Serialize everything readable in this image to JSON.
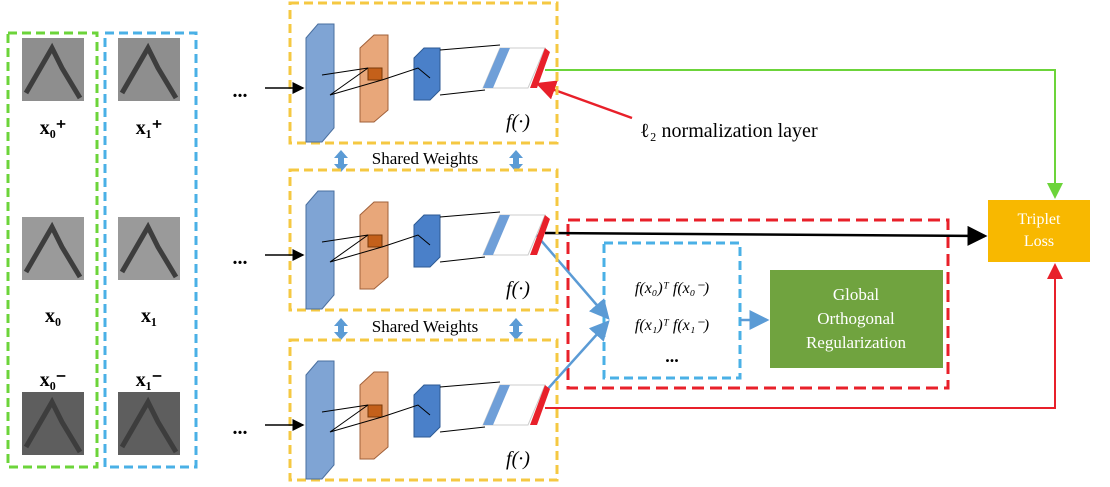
{
  "samples": [
    {
      "label": "x₀⁺"
    },
    {
      "label": "x₁⁺"
    },
    {
      "label": "x₀"
    },
    {
      "label": "x₁"
    },
    {
      "label": "x₀⁻"
    },
    {
      "label": "x₁⁻"
    }
  ],
  "ellipses": [
    "...",
    "...",
    "..."
  ],
  "branches": [
    {
      "function": "f(·)"
    },
    {
      "function": "f(·)"
    },
    {
      "function": "f(·)"
    }
  ],
  "normalization_label": "ℓ₂ normalization layer",
  "shared_weights": [
    "Shared Weights",
    "Shared Weights"
  ],
  "loss": [
    "Triplet",
    "Loss"
  ],
  "regularizer": {
    "terms": [
      "f(x₀)ᵀ f(x₀⁻)",
      "f(x₁)ᵀ f(x₁⁻)",
      "..."
    ],
    "label": [
      "Global",
      "Orthogonal",
      "Regularization"
    ]
  }
}
